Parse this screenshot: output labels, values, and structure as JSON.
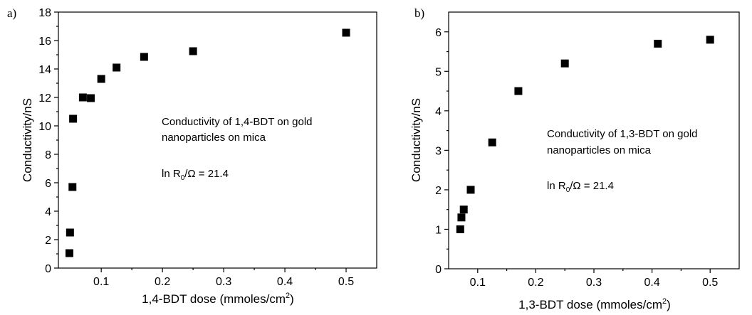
{
  "chart_data": [
    {
      "type": "scatter",
      "panel_label": "a)",
      "xlabel": "1,4-BDT dose (mmoles/cm",
      "xlabel_sup": "2",
      "xlabel_close": ")",
      "ylabel": "Conductivity/nS",
      "xlim": [
        0.03,
        0.55
      ],
      "ylim": [
        0,
        18
      ],
      "xticks": [
        0.1,
        0.2,
        0.3,
        0.4,
        0.5
      ],
      "xtick_labels": [
        "0.1",
        "0.2",
        "0.3",
        "0.4",
        "0.5"
      ],
      "yticks": [
        0,
        2,
        4,
        6,
        8,
        10,
        12,
        14,
        16,
        18
      ],
      "ytick_labels": [
        "0",
        "2",
        "4",
        "6",
        "8",
        "10",
        "12",
        "14",
        "16",
        "18"
      ],
      "annotation_line1": "Conductivity of 1,4-BDT on gold",
      "annotation_line2": "nanoparticles on mica",
      "annotation_formula_prefix": "ln R",
      "annotation_formula_sub": "0",
      "annotation_formula_suffix": "/Ω = 21.4",
      "series": [
        {
          "x": [
            0.048,
            0.049,
            0.053,
            0.054,
            0.07,
            0.083,
            0.1,
            0.125,
            0.17,
            0.25,
            0.5
          ],
          "y": [
            1.05,
            2.5,
            5.7,
            10.5,
            12.0,
            11.95,
            13.3,
            14.1,
            14.85,
            15.25,
            16.55
          ]
        }
      ]
    },
    {
      "type": "scatter",
      "panel_label": "b)",
      "xlabel": "1,3-BDT dose (mmoles/cm",
      "xlabel_sup": "2",
      "xlabel_close": ")",
      "ylabel": "Conductivity/nS",
      "xlim": [
        0.05,
        0.55
      ],
      "ylim": [
        0,
        6.5
      ],
      "xticks": [
        0.1,
        0.2,
        0.3,
        0.4,
        0.5
      ],
      "xtick_labels": [
        "0.1",
        "0.2",
        "0.3",
        "0.4",
        "0.5"
      ],
      "yticks": [
        0,
        1,
        2,
        3,
        4,
        5,
        6
      ],
      "ytick_labels": [
        "0",
        "1",
        "2",
        "3",
        "4",
        "5",
        "6"
      ],
      "annotation_line1": "Conductivity of 1,3-BDT on gold",
      "annotation_line2": "nanoparticles on mica",
      "annotation_formula_prefix": "ln R",
      "annotation_formula_sub": "0",
      "annotation_formula_suffix": "/Ω = 21.4",
      "series": [
        {
          "x": [
            0.07,
            0.072,
            0.076,
            0.088,
            0.125,
            0.17,
            0.25,
            0.41,
            0.5
          ],
          "y": [
            1.0,
            1.3,
            1.5,
            2.0,
            3.2,
            4.5,
            5.2,
            5.7,
            5.8
          ]
        }
      ]
    }
  ]
}
